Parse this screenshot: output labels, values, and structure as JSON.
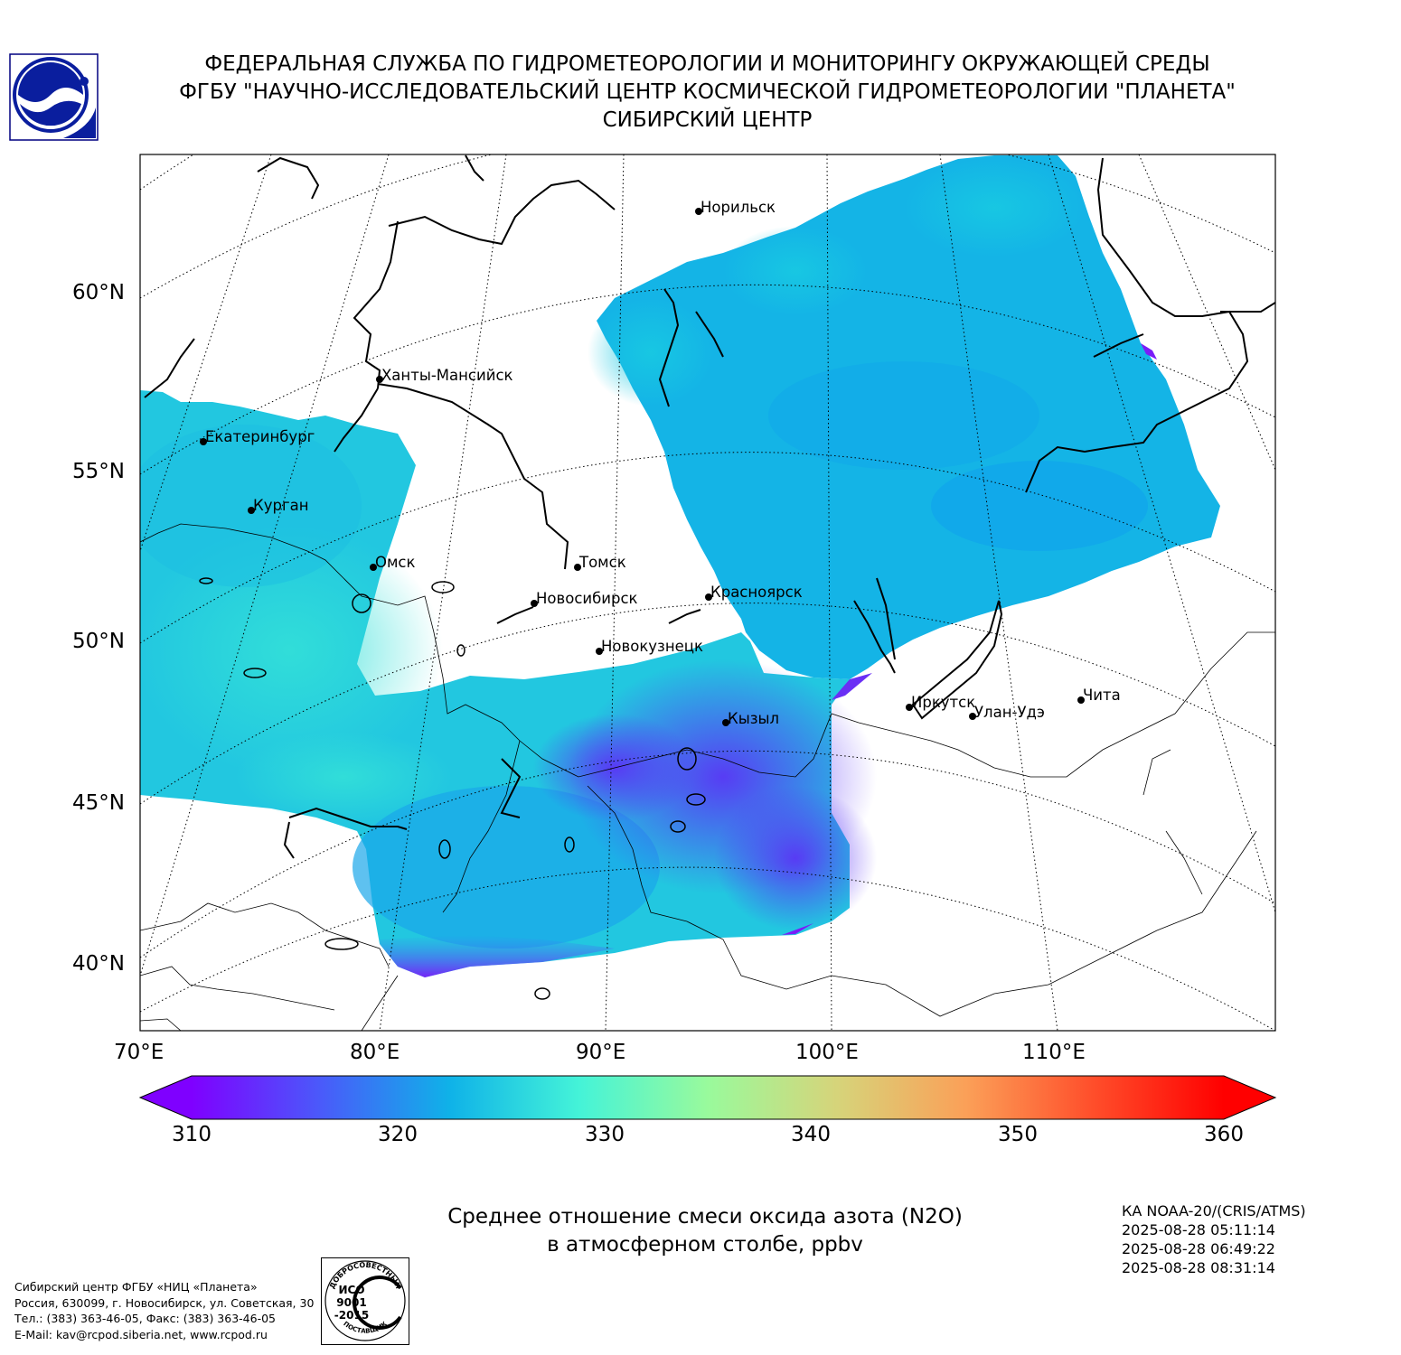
{
  "header": {
    "line1": "ФЕДЕРАЛЬНАЯ СЛУЖБА ПО ГИДРОМЕТЕОРОЛОГИИ И МОНИТОРИНГУ ОКРУЖАЮЩЕЙ СРЕДЫ",
    "line2": "ФГБУ \"НАУЧНО-ИССЛЕДОВАТЕЛЬСКИЙ ЦЕНТР КОСМИЧЕСКОЙ ГИДРОМЕТЕОРОЛОГИИ \"ПЛАНЕТА\"",
    "line3": "СИБИРСКИЙ ЦЕНТР"
  },
  "map": {
    "lat_labels": [
      "60°N",
      "55°N",
      "50°N",
      "45°N",
      "40°N"
    ],
    "lon_labels": [
      "70°E",
      "80°E",
      "90°E",
      "100°E",
      "110°E"
    ],
    "cities": [
      {
        "name": "Норильск"
      },
      {
        "name": "Ханты-Мансийск"
      },
      {
        "name": "Екатеринбург"
      },
      {
        "name": "Курган"
      },
      {
        "name": "Омск"
      },
      {
        "name": "Томск"
      },
      {
        "name": "Новосибирск"
      },
      {
        "name": "Красноярск"
      },
      {
        "name": "Новокузнецк"
      },
      {
        "name": "Кызыл"
      },
      {
        "name": "Иркутск"
      },
      {
        "name": "Улан-Удэ"
      },
      {
        "name": "Чита"
      }
    ]
  },
  "colorbar": {
    "ticks": [
      "310",
      "320",
      "330",
      "340",
      "350",
      "360"
    ],
    "min": 310,
    "max": 360,
    "colors": [
      "#7f00ff",
      "#4a5afa",
      "#0fb2e8",
      "#44f3d8",
      "#99fa9c",
      "#d6d47a",
      "#fba058",
      "#ff4d2a",
      "#ff0000"
    ]
  },
  "title": {
    "line1": "Среднее отношение смеси оксида азота (N2O)",
    "line2": "в атмосферном столбе, ppbv"
  },
  "satellite": {
    "name": "КА NOAA-20/(CRIS/ATMS)",
    "times": [
      "2025-08-28 05:11:14",
      "2025-08-28 06:49:22",
      "2025-08-28 08:31:14"
    ]
  },
  "footer": {
    "line1": "Сибирский центр ФГБУ «НИЦ «Планета»",
    "line2": "Россия, 630099, г. Новосибирск, ул. Советская, 30",
    "line3": "Тел.: (383) 363-46-05, Факс: (383) 363-46-05",
    "line4": "E-Mail: kav@rcpod.siberia.net, www.rcpod.ru"
  },
  "iso": {
    "top": "ДОБРОСОВЕСТНЫЙ",
    "l1": "ИСО",
    "l2": "9001",
    "l3": "-2015",
    "bottom": "ПОСТАВЩИК"
  }
}
